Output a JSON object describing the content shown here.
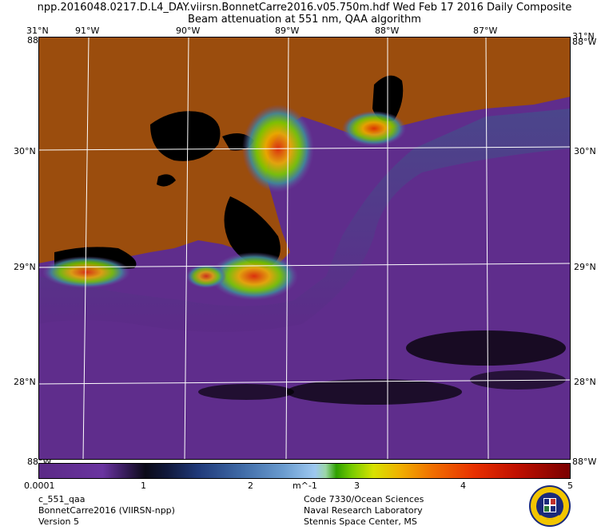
{
  "header": {
    "line1": "npp.2016048.0217.D.L4_DAY.viirsn.BonnetCarre2016.v05.750m.hdf    Wed Feb 17 2016 Daily Composite",
    "line2": "Beam attenuation at 551 nm, QAA algorithm"
  },
  "map": {
    "top_labels": [
      "31°N",
      "91°W",
      "90°W",
      "89°W",
      "88°W",
      "87°W",
      "31°N"
    ],
    "top_corner_left": "88°W",
    "top_corner_right": "88°W",
    "left_labels": [
      "30°N",
      "29°N",
      "28°N"
    ],
    "right_labels": [
      "30°N",
      "29°N",
      "28°N"
    ],
    "bottom_corner_left": "88°W",
    "bottom_corner_right": "88°W",
    "colors": {
      "land": "#9b4d0d",
      "ocean_low": "#5b2a86",
      "nodata": "#000000",
      "grid": "#ffffff"
    }
  },
  "colorbar": {
    "ticks": [
      "0.0001",
      "1",
      "2",
      "m^-1",
      "3",
      "4",
      "5"
    ]
  },
  "footer": {
    "left": [
      "c_551_qaa",
      "BonnetCarre2016 (VIIRSN-npp)",
      "Version 5"
    ],
    "right": [
      "Code 7330/Ocean Sciences",
      "Naval Research Laboratory",
      "Stennis Space Center, MS"
    ]
  },
  "emblem": {
    "icon": "nrl-emblem-icon"
  }
}
